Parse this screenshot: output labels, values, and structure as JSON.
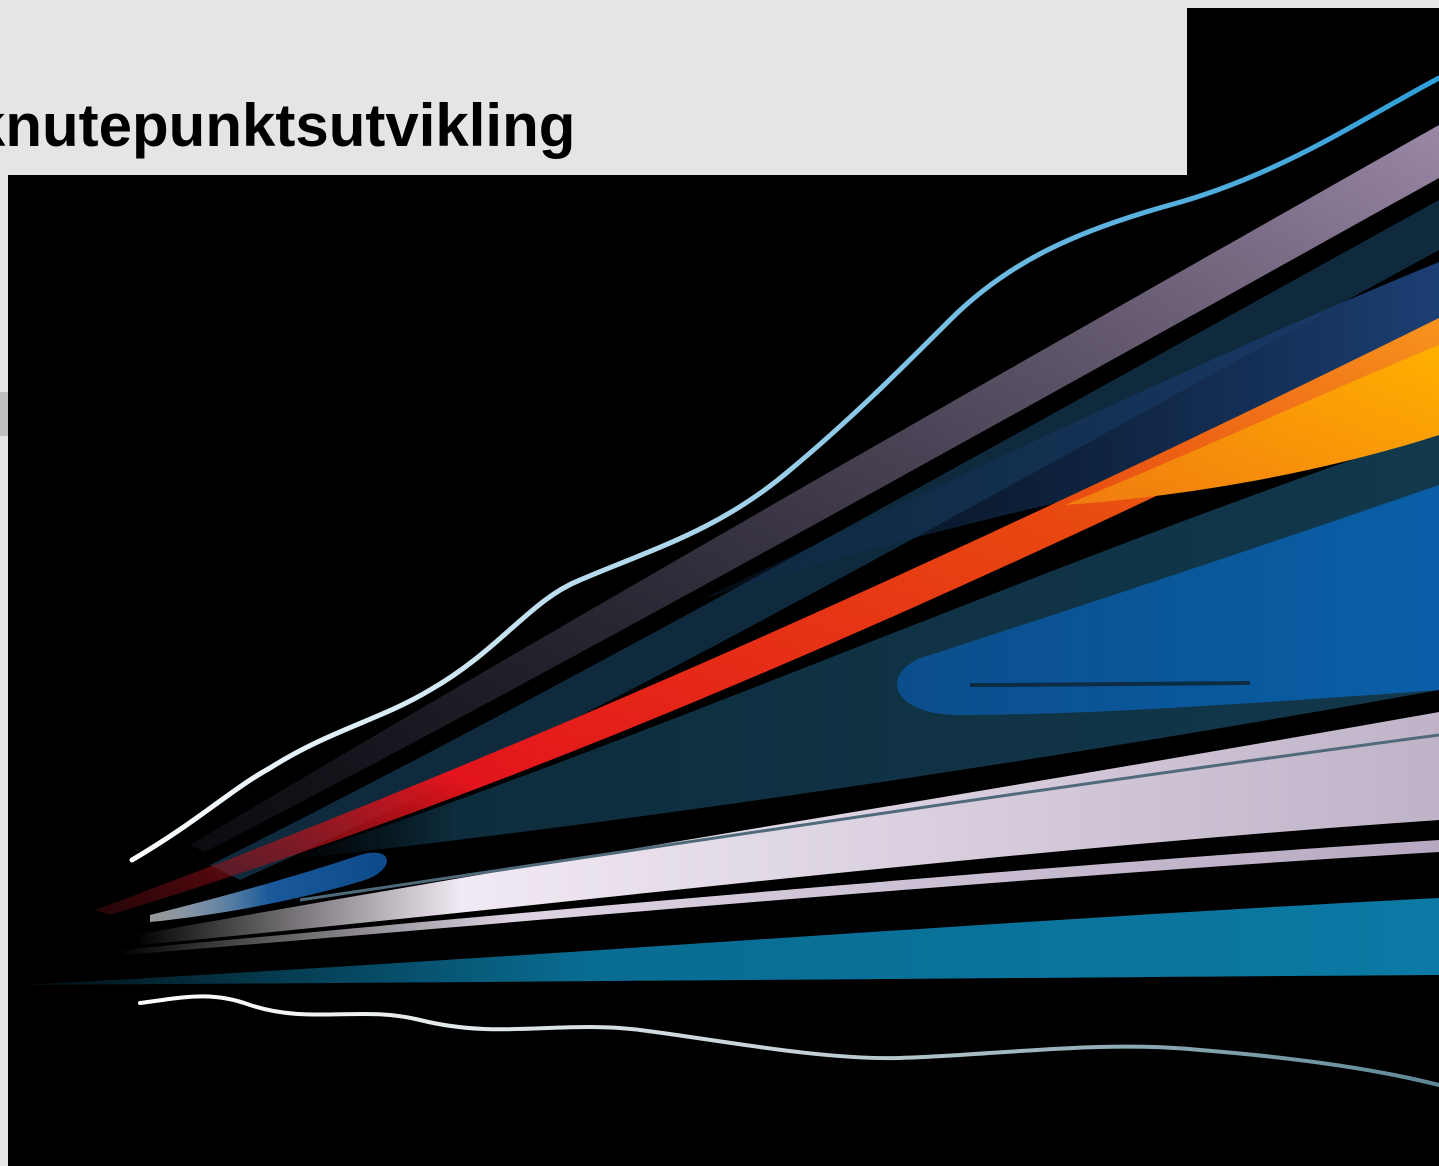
{
  "slide": {
    "title": "knutepunktsutvikling"
  },
  "graphic": {
    "name": "speed-streaks-illustration",
    "background_color": "#000000",
    "panel_color": "#e5e5e5",
    "streak_colors": {
      "sky_blue": "#5fb3dc",
      "lavender": "#8d7d99",
      "orange": "#f7941d",
      "red": "#e3141c",
      "royal_blue": "#0a5fa8",
      "pale_lilac": "#d9cfe0",
      "teal": "#0a7aa4",
      "silver": "#b8c4cc"
    }
  }
}
